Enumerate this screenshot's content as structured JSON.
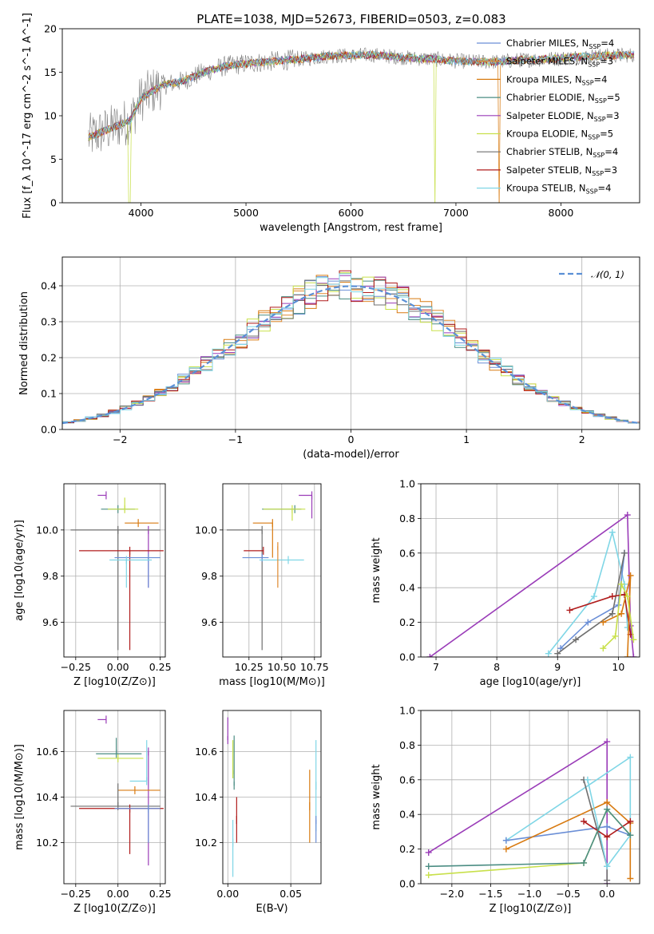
{
  "figure": {
    "title": "PLATE=1038, MJD=52673, FIBERID=0503, z=0.083"
  },
  "colors": {
    "Chabrier MILES": "#6a8ed6",
    "Salpeter MILES": "#e08a2f",
    "Kroupa MILES": "#d87a10",
    "Chabrier ELODIE": "#4b8d83",
    "Salpeter ELODIE": "#9a3cb8",
    "Kroupa ELODIE": "#c8e04a",
    "Chabrier STELIB": "#6f6f6f",
    "Salpeter STELIB": "#b01c1c",
    "Kroupa STELIB": "#7fd6e6",
    "normal_curve": "#5a8fd6",
    "grid": "#b0b0b0"
  },
  "chart_data": [
    {
      "id": "spectrum",
      "type": "line",
      "xlabel": "wavelength [Angstrom, rest frame]",
      "ylabel": "Flux [f_λ 10^-17 erg cm^-2 s^-1 A^-1]",
      "xlim": [
        3250,
        8750
      ],
      "ylim": [
        0,
        20
      ],
      "xticks": [
        4000,
        5000,
        6000,
        7000,
        8000
      ],
      "yticks": [
        0,
        5,
        10,
        15,
        20
      ],
      "grid": false,
      "legend_position": "right",
      "legend": [
        "Chabrier MILES, N_SSP=4",
        "Salpeter MILES, N_SSP=3",
        "Kroupa MILES, N_SSP=4",
        "Chabrier ELODIE, N_SSP=5",
        "Salpeter ELODIE, N_SSP=3",
        "Kroupa ELODIE, N_SSP=5",
        "Chabrier STELIB, N_SSP=4",
        "Salpeter STELIB, N_SSP=3",
        "Kroupa STELIB, N_SSP=4"
      ],
      "continuum": {
        "x": [
          3500,
          3700,
          3900,
          4000,
          4200,
          4400,
          4600,
          4800,
          5000,
          5200,
          5400,
          5600,
          5800,
          6000,
          6200,
          6400,
          6600,
          6800,
          7000,
          7200,
          7400,
          7600,
          7800,
          8000,
          8200,
          8400,
          8750
        ],
        "y": [
          7.5,
          8.5,
          9.5,
          12.0,
          13.5,
          14.0,
          15.0,
          15.7,
          16.0,
          16.2,
          16.4,
          16.6,
          16.9,
          16.9,
          17.0,
          16.8,
          16.6,
          16.5,
          16.3,
          16.2,
          16.2,
          16.4,
          16.5,
          16.6,
          16.8,
          16.9,
          17.0
        ]
      }
    },
    {
      "id": "residuals",
      "type": "line",
      "xlabel": "(data-model)/error",
      "ylabel": "Normed distribution",
      "xlim": [
        -2.5,
        2.5
      ],
      "ylim": [
        0,
        0.48
      ],
      "xticks": [
        -2,
        -1,
        0,
        1,
        2
      ],
      "yticks": [
        0.0,
        0.1,
        0.2,
        0.3,
        0.4
      ],
      "grid": true,
      "legend_position": "top-right",
      "series": [
        {
          "name": "𝒩(0, 1)",
          "style": "dashed",
          "source": "gaussian"
        }
      ]
    },
    {
      "id": "age_vs_Z",
      "type": "scatter",
      "xlabel": "Z [log10(Z/Z⊙)]",
      "ylabel": "age  [log10(age/yr)]",
      "xlim": [
        -0.32,
        0.28
      ],
      "ylim": [
        9.45,
        10.2
      ],
      "xticks": [
        -0.25,
        0.0,
        0.25
      ],
      "yticks": [
        9.6,
        9.8,
        10.0
      ],
      "grid": true,
      "errorbars": [
        {
          "lib": "Salpeter ELODIE",
          "x": -0.07,
          "y": 10.15,
          "xerr": [
            0.05,
            0.0
          ],
          "yerr": [
            0.0,
            0.0
          ]
        },
        {
          "lib": "Salpeter ELODIE",
          "x": 0.18,
          "y": 10.0,
          "xerr": [
            0,
            0
          ],
          "yerr": [
            0.25,
            0.0
          ]
        },
        {
          "lib": "Chabrier ELODIE",
          "x": 0.0,
          "y": 10.09,
          "xerr": [
            0.1,
            0.1
          ],
          "yerr": [
            0.0,
            0.0
          ]
        },
        {
          "lib": "Kroupa ELODIE",
          "x": 0.04,
          "y": 10.09,
          "xerr": [
            0.1,
            0.08
          ],
          "yerr": [
            0.0,
            0.05
          ]
        },
        {
          "lib": "Kroupa MILES",
          "x": 0.12,
          "y": 10.03,
          "xerr": [
            0.08,
            0.12
          ],
          "yerr": [
            0.0,
            0.0
          ]
        },
        {
          "lib": "Chabrier STELIB",
          "x": 0.0,
          "y": 10.0,
          "xerr": [
            0.28,
            0.25
          ],
          "yerr": [
            0.52,
            0.0
          ]
        },
        {
          "lib": "Salpeter STELIB",
          "x": 0.07,
          "y": 9.91,
          "xerr": [
            0.3,
            0.2
          ],
          "yerr": [
            0.43,
            0.0
          ]
        },
        {
          "lib": "Chabrier MILES",
          "x": 0.18,
          "y": 9.88,
          "xerr": [
            0.2,
            0.07
          ],
          "yerr": [
            0.13,
            0.0
          ]
        },
        {
          "lib": "Kroupa STELIB",
          "x": 0.05,
          "y": 9.87,
          "xerr": [
            0.1,
            0.15
          ],
          "yerr": [
            0.12,
            0.0
          ]
        }
      ]
    },
    {
      "id": "age_vs_mass",
      "type": "scatter",
      "xlabel": "mass [log10(M/M⊙)]",
      "ylabel": "",
      "xlim": [
        10.05,
        10.8
      ],
      "ylim": [
        9.45,
        10.2
      ],
      "xticks": [
        10.25,
        10.5,
        10.75
      ],
      "yticks": [
        9.6,
        9.8,
        10.0
      ],
      "grid": true,
      "errorbars": [
        {
          "lib": "Salpeter ELODIE",
          "x": 10.73,
          "y": 10.15,
          "xerr": [
            0.1,
            0.0
          ],
          "yerr": [
            0.1,
            0.0
          ]
        },
        {
          "lib": "Chabrier ELODIE",
          "x": 10.6,
          "y": 10.09,
          "xerr": [
            0.25,
            0.05
          ],
          "yerr": [
            0.0,
            0.0
          ]
        },
        {
          "lib": "Kroupa ELODIE",
          "x": 10.58,
          "y": 10.09,
          "xerr": [
            0.22,
            0.1
          ],
          "yerr": [
            0.05,
            0.0
          ]
        },
        {
          "lib": "Kroupa MILES",
          "x": 10.43,
          "y": 10.03,
          "xerr": [
            0.15,
            0.0
          ],
          "yerr": [
            0.15,
            0.0
          ]
        },
        {
          "lib": "Chabrier STELIB",
          "x": 10.35,
          "y": 10.0,
          "xerr": [
            0.27,
            0.0
          ],
          "yerr": [
            0.52,
            0.0
          ]
        },
        {
          "lib": "Salpeter STELIB",
          "x": 10.36,
          "y": 9.91,
          "xerr": [
            0.15,
            0.0
          ],
          "yerr": [
            0.0,
            0.0
          ]
        },
        {
          "lib": "Chabrier MILES",
          "x": 10.35,
          "y": 9.88,
          "xerr": [
            0.15,
            0.05
          ],
          "yerr": [
            0.0,
            0.0
          ]
        },
        {
          "lib": "Kroupa STELIB",
          "x": 10.55,
          "y": 9.87,
          "xerr": [
            0.22,
            0.12
          ],
          "yerr": [
            0.0,
            0.0
          ]
        },
        {
          "lib": "Salpeter MILES",
          "x": 10.47,
          "y": 9.93,
          "xerr": [
            0.0,
            0.0
          ],
          "yerr": [
            0.18,
            0.0
          ]
        }
      ]
    },
    {
      "id": "massweight_vs_age",
      "type": "line",
      "xlabel": "age  [log10(age/yr)]",
      "ylabel": "mass weight",
      "xlim": [
        6.75,
        10.35
      ],
      "ylim": [
        0.0,
        1.0
      ],
      "xticks": [
        7,
        8,
        9,
        10
      ],
      "yticks": [
        0.0,
        0.2,
        0.4,
        0.6,
        0.8,
        1.0
      ],
      "grid": true,
      "series": [
        {
          "name": "Salpeter ELODIE",
          "x": [
            6.9,
            10.15,
            10.2,
            10.25
          ],
          "y": [
            0.0,
            0.82,
            0.18,
            0.0
          ]
        },
        {
          "name": "Kroupa STELIB",
          "x": [
            8.85,
            9.6,
            9.9,
            10.1,
            10.15
          ],
          "y": [
            0.02,
            0.35,
            0.72,
            0.42,
            0.17
          ]
        },
        {
          "name": "Chabrier MILES",
          "x": [
            9.05,
            9.5,
            10.0,
            10.1
          ],
          "y": [
            0.05,
            0.2,
            0.3,
            0.6
          ]
        },
        {
          "name": "Chabrier STELIB",
          "x": [
            9.0,
            9.3,
            9.9,
            10.1
          ],
          "y": [
            0.02,
            0.1,
            0.25,
            0.6
          ]
        },
        {
          "name": "Salpeter STELIB",
          "x": [
            9.2,
            9.9,
            10.1,
            10.2
          ],
          "y": [
            0.27,
            0.35,
            0.36,
            0.13
          ]
        },
        {
          "name": "Kroupa MILES",
          "x": [
            9.75,
            10.05,
            10.2,
            10.15
          ],
          "y": [
            0.2,
            0.25,
            0.47,
            0.0
          ]
        },
        {
          "name": "Kroupa ELODIE",
          "x": [
            9.75,
            9.95,
            10.05,
            10.15,
            10.25
          ],
          "y": [
            0.05,
            0.12,
            0.42,
            0.35,
            0.1
          ]
        }
      ]
    },
    {
      "id": "mass_vs_Z",
      "type": "scatter",
      "xlabel": "Z [log10(Z/Z⊙)]",
      "ylabel": "mass [log10(M/M⊙)]",
      "xlim": [
        -0.32,
        0.28
      ],
      "ylim": [
        10.02,
        10.78
      ],
      "xticks": [
        -0.25,
        0.0,
        0.25
      ],
      "yticks": [
        10.2,
        10.4,
        10.6
      ],
      "grid": true,
      "errorbars": [
        {
          "lib": "Salpeter ELODIE",
          "x": -0.07,
          "y": 10.74,
          "xerr": [
            0.05,
            0.0
          ],
          "yerr": [
            0.0,
            0.0
          ]
        },
        {
          "lib": "Salpeter ELODIE",
          "x": 0.18,
          "y": 10.6,
          "xerr": [
            0.0,
            0.0
          ],
          "yerr": [
            0.5,
            0.0
          ]
        },
        {
          "lib": "Chabrier ELODIE",
          "x": -0.01,
          "y": 10.59,
          "xerr": [
            0.12,
            0.15
          ],
          "yerr": [
            0.0,
            0.07
          ]
        },
        {
          "lib": "Kroupa ELODIE",
          "x": 0.0,
          "y": 10.57,
          "xerr": [
            0.12,
            0.15
          ],
          "yerr": [
            0.0,
            0.0
          ]
        },
        {
          "lib": "Kroupa STELIB",
          "x": 0.17,
          "y": 10.47,
          "xerr": [
            0.1,
            0.0
          ],
          "yerr": [
            0.0,
            0.18
          ]
        },
        {
          "lib": "Kroupa MILES",
          "x": 0.1,
          "y": 10.43,
          "xerr": [
            0.1,
            0.15
          ],
          "yerr": [
            0.0,
            0.0
          ]
        },
        {
          "lib": "Chabrier STELIB",
          "x": 0.0,
          "y": 10.36,
          "xerr": [
            0.28,
            0.25
          ],
          "yerr": [
            0.0,
            0.1
          ]
        },
        {
          "lib": "Salpeter STELIB",
          "x": 0.07,
          "y": 10.35,
          "xerr": [
            0.3,
            0.2
          ],
          "yerr": [
            0.2,
            0.0
          ]
        },
        {
          "lib": "Chabrier MILES",
          "x": 0.18,
          "y": 10.35,
          "xerr": [
            0.2,
            0.07
          ],
          "yerr": [
            0.15,
            0.0
          ]
        }
      ]
    },
    {
      "id": "mass_vs_ebv",
      "type": "scatter",
      "xlabel": "E(B-V)",
      "ylabel": "",
      "xlim": [
        -0.004,
        0.074
      ],
      "ylim": [
        10.02,
        10.78
      ],
      "xticks": [
        0.0,
        0.05
      ],
      "yticks": [
        10.2,
        10.4,
        10.6
      ],
      "grid": true,
      "errorbars": [
        {
          "lib": "Salpeter ELODIE",
          "x": 0.0,
          "y": 10.65,
          "xerr": [
            0,
            0
          ],
          "yerr": [
            0.0,
            0.1
          ]
        },
        {
          "lib": "Chabrier ELODIE",
          "x": 0.005,
          "y": 10.45,
          "xerr": [
            0,
            0
          ],
          "yerr": [
            0.0,
            0.22
          ]
        },
        {
          "lib": "Kroupa ELODIE",
          "x": 0.004,
          "y": 10.5,
          "xerr": [
            0,
            0
          ],
          "yerr": [
            0.0,
            0.15
          ]
        },
        {
          "lib": "Salpeter STELIB",
          "x": 0.007,
          "y": 10.3,
          "xerr": [
            0,
            0
          ],
          "yerr": [
            0.1,
            0.1
          ]
        },
        {
          "lib": "Kroupa STELIB",
          "x": 0.004,
          "y": 10.2,
          "xerr": [
            0,
            0
          ],
          "yerr": [
            0.15,
            0.1
          ]
        },
        {
          "lib": "Kroupa MILES",
          "x": 0.065,
          "y": 10.36,
          "xerr": [
            0,
            0
          ],
          "yerr": [
            0.16,
            0.16
          ]
        },
        {
          "lib": "Kroupa STELIB",
          "x": 0.07,
          "y": 10.45,
          "xerr": [
            0,
            0
          ],
          "yerr": [
            0.2,
            0.2
          ]
        },
        {
          "lib": "Chabrier MILES",
          "x": 0.07,
          "y": 10.3,
          "xerr": [
            0,
            0
          ],
          "yerr": [
            0.1,
            0.0
          ]
        }
      ]
    },
    {
      "id": "massweight_vs_Z",
      "type": "line",
      "xlabel": "Z [log10(Z/Z⊙)]",
      "ylabel": "mass weight",
      "xlim": [
        -2.4,
        0.42
      ],
      "ylim": [
        0.0,
        1.0
      ],
      "xticks": [
        -2.0,
        -1.5,
        -1.0,
        -0.5,
        0.0
      ],
      "yticks": [
        0.0,
        0.2,
        0.4,
        0.6,
        0.8,
        1.0
      ],
      "grid": true,
      "series": [
        {
          "name": "Salpeter ELODIE",
          "x": [
            -2.3,
            0.0,
            0.0
          ],
          "y": [
            0.18,
            0.82,
            0.0
          ]
        },
        {
          "name": "Kroupa STELIB",
          "x": [
            -1.3,
            0.3,
            0.3
          ],
          "y": [
            0.25,
            0.73,
            0.28
          ]
        },
        {
          "name": "Chabrier MILES",
          "x": [
            -1.3,
            0.0,
            0.3
          ],
          "y": [
            0.25,
            0.33,
            0.28
          ]
        },
        {
          "name": "Kroupa MILES",
          "x": [
            -1.3,
            0.0,
            0.3,
            0.3
          ],
          "y": [
            0.2,
            0.47,
            0.35,
            0.03
          ]
        },
        {
          "name": "Chabrier STELIB",
          "x": [
            -0.3,
            0.0,
            0.0
          ],
          "y": [
            0.6,
            0.1,
            0.02
          ]
        },
        {
          "name": "Kroupa STELIB",
          "x": [
            -0.25,
            0.0,
            0.3
          ],
          "y": [
            0.6,
            0.1,
            0.28
          ]
        },
        {
          "name": "Salpeter STELIB",
          "x": [
            -0.3,
            0.0,
            0.3
          ],
          "y": [
            0.36,
            0.27,
            0.36
          ]
        },
        {
          "name": "Kroupa ELODIE",
          "x": [
            -2.3,
            -0.3,
            0.0,
            0.3
          ],
          "y": [
            0.05,
            0.12,
            0.43,
            0.28
          ]
        },
        {
          "name": "Chabrier ELODIE",
          "x": [
            -2.3,
            -0.3,
            0.0,
            0.3
          ],
          "y": [
            0.1,
            0.12,
            0.43,
            0.28
          ]
        }
      ]
    }
  ]
}
